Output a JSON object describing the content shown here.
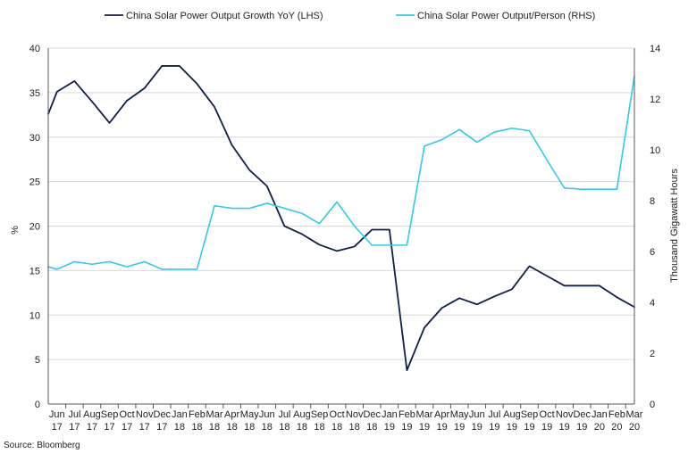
{
  "chart_data": {
    "type": "line",
    "title": "",
    "legend_position": "top",
    "categories": [
      [
        "Jun",
        "17"
      ],
      [
        "Jul",
        "17"
      ],
      [
        "Aug",
        "17"
      ],
      [
        "Sep",
        "17"
      ],
      [
        "Oct",
        "17"
      ],
      [
        "Nov",
        "17"
      ],
      [
        "Dec",
        "17"
      ],
      [
        "Jan",
        "18"
      ],
      [
        "Feb",
        "18"
      ],
      [
        "Mar",
        "18"
      ],
      [
        "Apr",
        "18"
      ],
      [
        "May",
        "18"
      ],
      [
        "Jun",
        "18"
      ],
      [
        "Jul",
        "18"
      ],
      [
        "Aug",
        "18"
      ],
      [
        "Sep",
        "18"
      ],
      [
        "Oct",
        "18"
      ],
      [
        "Nov",
        "18"
      ],
      [
        "Dec",
        "18"
      ],
      [
        "Jan",
        "19"
      ],
      [
        "Feb",
        "19"
      ],
      [
        "Mar",
        "19"
      ],
      [
        "Apr",
        "19"
      ],
      [
        "May",
        "19"
      ],
      [
        "Jun",
        "19"
      ],
      [
        "Jul",
        "19"
      ],
      [
        "Aug",
        "19"
      ],
      [
        "Sep",
        "19"
      ],
      [
        "Oct",
        "19"
      ],
      [
        "Nov",
        "19"
      ],
      [
        "Dec",
        "19"
      ],
      [
        "Jan",
        "20"
      ],
      [
        "Feb",
        "20"
      ],
      [
        "Mar",
        "20"
      ]
    ],
    "ylabel_left": "%",
    "ylabel_right": "Thousand Gigawatt Hours",
    "ylim_left": [
      0,
      40
    ],
    "ylim_right": [
      0,
      14
    ],
    "yticks_left": [
      0,
      5,
      10,
      15,
      20,
      25,
      30,
      35,
      40
    ],
    "yticks_right": [
      0,
      2,
      4,
      6,
      8,
      10,
      12,
      14
    ],
    "grid": "horizontal",
    "series": [
      {
        "name": "China Solar Power Output Growth YoY (LHS)",
        "axis": "left",
        "color": "#0f1f45",
        "points": [
          [
            -0.5,
            32.6
          ],
          [
            0,
            35.1
          ],
          [
            1,
            36.3
          ],
          [
            2,
            34.0
          ],
          [
            3,
            31.6
          ],
          [
            4,
            34.1
          ],
          [
            5,
            35.5
          ],
          [
            6,
            38.0
          ],
          [
            7,
            38.0
          ],
          [
            8,
            36.0
          ],
          [
            9,
            33.4
          ],
          [
            10,
            29.1
          ],
          [
            11,
            26.3
          ],
          [
            12,
            24.5
          ],
          [
            13,
            20.0
          ],
          [
            14,
            19.1
          ],
          [
            15,
            17.9
          ],
          [
            16,
            17.2
          ],
          [
            17,
            17.7
          ],
          [
            18,
            19.6
          ],
          [
            19,
            19.6
          ],
          [
            20,
            3.8
          ],
          [
            21,
            8.6
          ],
          [
            22,
            10.8
          ],
          [
            23,
            11.9
          ],
          [
            24,
            11.2
          ],
          [
            25,
            12.1
          ],
          [
            26,
            12.9
          ],
          [
            27,
            15.5
          ],
          [
            28,
            14.4
          ],
          [
            29,
            13.3
          ],
          [
            30,
            13.3
          ],
          [
            31,
            13.3
          ],
          [
            32,
            12.0
          ],
          [
            33,
            10.9
          ]
        ]
      },
      {
        "name": "China Solar Power Output/Person (RHS)",
        "axis": "right",
        "color": "#35c8e8",
        "points": [
          [
            -0.5,
            5.4
          ],
          [
            0,
            5.3
          ],
          [
            1,
            5.6
          ],
          [
            2,
            5.5
          ],
          [
            3,
            5.6
          ],
          [
            4,
            5.4
          ],
          [
            5,
            5.6
          ],
          [
            6,
            5.3
          ],
          [
            7,
            5.3
          ],
          [
            8,
            5.3
          ],
          [
            9,
            7.8
          ],
          [
            10,
            7.7
          ],
          [
            11,
            7.7
          ],
          [
            12,
            7.9
          ],
          [
            13,
            7.7
          ],
          [
            14,
            7.5
          ],
          [
            15,
            7.1
          ],
          [
            16,
            7.95
          ],
          [
            17,
            7.0
          ],
          [
            18,
            6.25
          ],
          [
            19,
            6.25
          ],
          [
            20,
            6.25
          ],
          [
            21,
            10.15
          ],
          [
            22,
            10.4
          ],
          [
            23,
            10.8
          ],
          [
            24,
            10.3
          ],
          [
            25,
            10.7
          ],
          [
            26,
            10.85
          ],
          [
            27,
            10.75
          ],
          [
            28,
            9.6
          ],
          [
            29,
            8.5
          ],
          [
            30,
            8.45
          ],
          [
            31,
            8.45
          ],
          [
            32,
            8.45
          ],
          [
            33,
            12.9
          ]
        ]
      }
    ]
  },
  "source": "Source: Bloomberg"
}
